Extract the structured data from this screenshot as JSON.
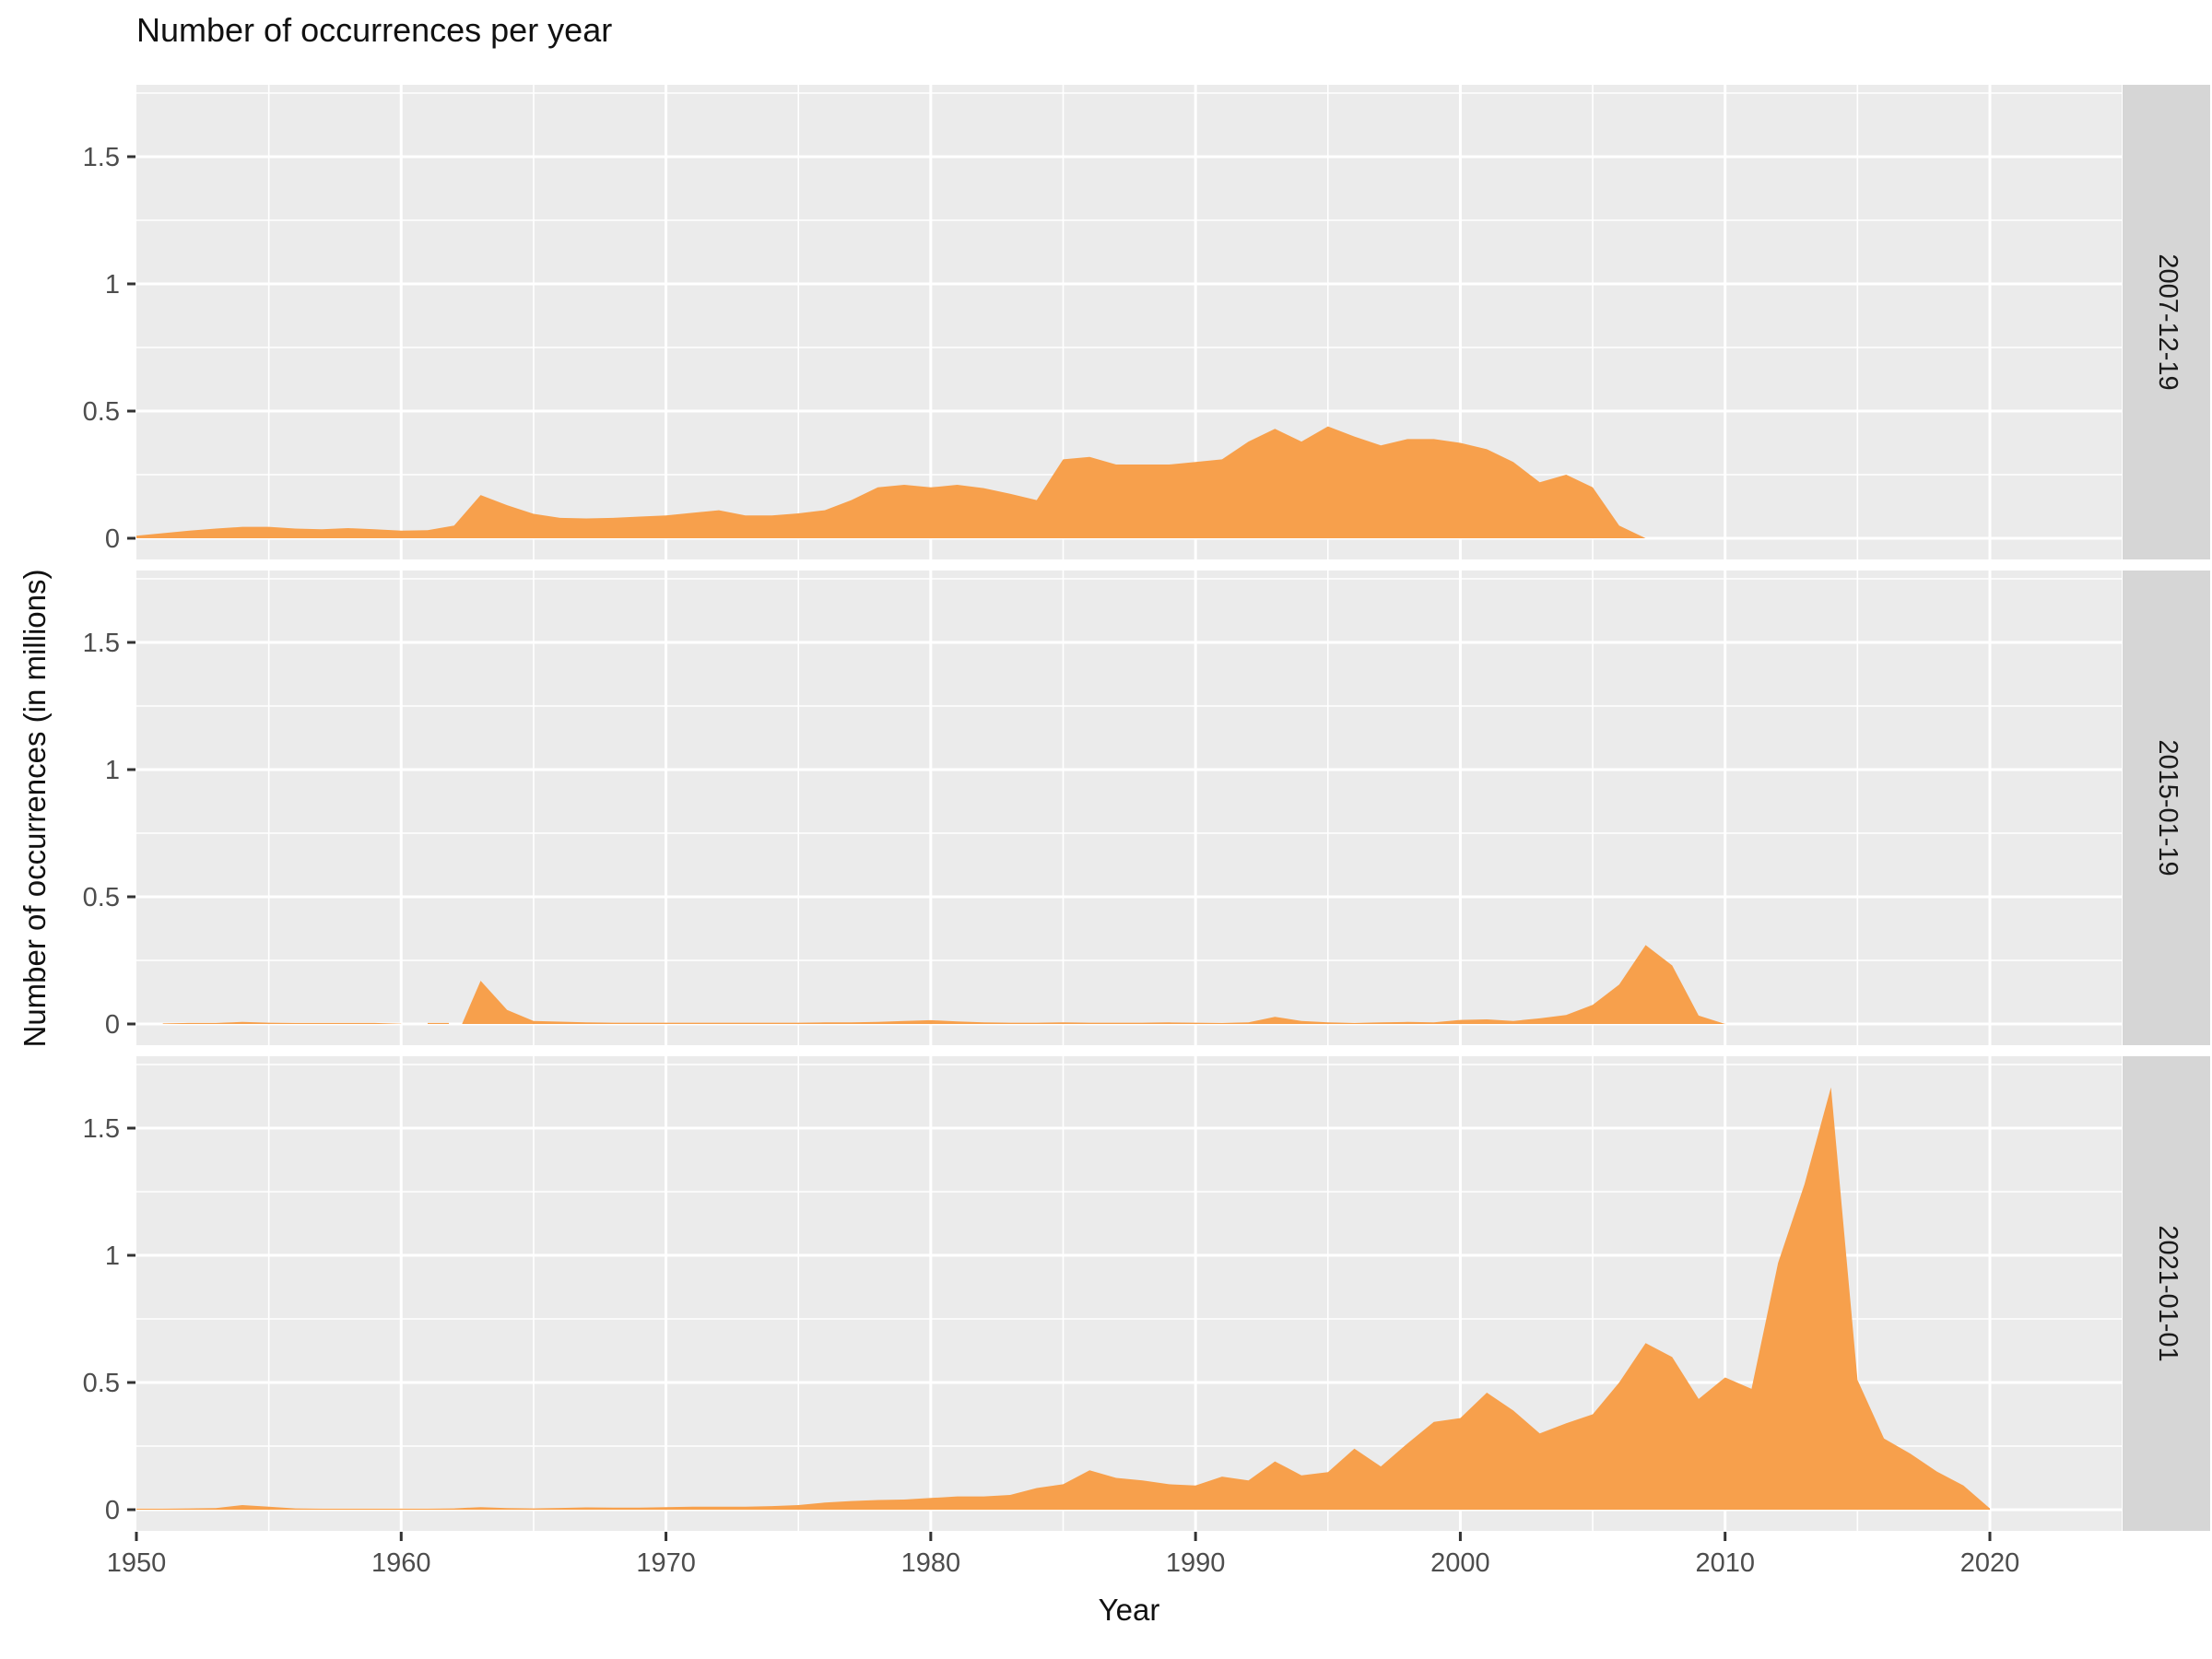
{
  "chart_data": {
    "type": "area",
    "title": "Number of occurrences per year",
    "xlabel": "Year",
    "ylabel": "Number of occurrences (in millions)",
    "x_ticks": [
      {
        "year": 1950,
        "label": "1950"
      },
      {
        "year": 1960,
        "label": "1960"
      },
      {
        "year": 1970,
        "label": "1970"
      },
      {
        "year": 1980,
        "label": "1980"
      },
      {
        "year": 1990,
        "label": "1990"
      },
      {
        "year": 2000,
        "label": "2000"
      },
      {
        "year": 2010,
        "label": "2010"
      },
      {
        "year": 2020,
        "label": "2020"
      }
    ],
    "x_minor_years": [
      1955,
      1965,
      1975,
      1985,
      1995,
      2005,
      2015
    ],
    "y_ticks": [
      {
        "value": 0,
        "label": "0"
      },
      {
        "value": 0.5,
        "label": "0.5"
      },
      {
        "value": 1,
        "label": "1"
      },
      {
        "value": 1.5,
        "label": "1.5"
      }
    ],
    "y_minor": [
      0.25,
      0.75,
      1.25,
      1.75
    ],
    "xlim": [
      1950,
      2025
    ],
    "ylim": [
      -0.085,
      1.78
    ],
    "grid": "on",
    "legend": "none",
    "colors": {
      "area": "#F7A04C",
      "panel_bg": "#EBEBEB",
      "strip_bg": "#D6D6D6",
      "grid": "#FFFFFF",
      "tick_text": "#4D4D4D",
      "tick_mark": "#333333",
      "strip_text": "#1A1A1A"
    },
    "facets": [
      {
        "label": "2007-12-19",
        "segments": [
          [
            [
              1950,
              0.01
            ],
            [
              1951,
              0.02
            ],
            [
              1952,
              0.03
            ],
            [
              1953,
              0.038
            ],
            [
              1954,
              0.045
            ],
            [
              1955,
              0.045
            ],
            [
              1956,
              0.038
            ],
            [
              1957,
              0.035
            ],
            [
              1958,
              0.04
            ],
            [
              1959,
              0.035
            ],
            [
              1960,
              0.03
            ],
            [
              1961,
              0.032
            ],
            [
              1962,
              0.05
            ],
            [
              1963,
              0.17
            ],
            [
              1964,
              0.13
            ],
            [
              1965,
              0.096
            ],
            [
              1966,
              0.08
            ],
            [
              1967,
              0.078
            ],
            [
              1968,
              0.08
            ],
            [
              1969,
              0.085
            ],
            [
              1970,
              0.09
            ],
            [
              1971,
              0.1
            ],
            [
              1972,
              0.11
            ],
            [
              1973,
              0.09
            ],
            [
              1974,
              0.09
            ],
            [
              1975,
              0.098
            ],
            [
              1976,
              0.11
            ],
            [
              1977,
              0.15
            ],
            [
              1978,
              0.2
            ],
            [
              1979,
              0.21
            ],
            [
              1980,
              0.2
            ],
            [
              1981,
              0.21
            ],
            [
              1982,
              0.197
            ],
            [
              1983,
              0.175
            ],
            [
              1984,
              0.15
            ],
            [
              1985,
              0.31
            ],
            [
              1986,
              0.32
            ],
            [
              1987,
              0.29
            ],
            [
              1988,
              0.29
            ],
            [
              1989,
              0.29
            ],
            [
              1990,
              0.3
            ],
            [
              1991,
              0.31
            ],
            [
              1992,
              0.38
            ],
            [
              1993,
              0.43
            ],
            [
              1994,
              0.38
            ],
            [
              1995,
              0.44
            ],
            [
              1996,
              0.4
            ],
            [
              1997,
              0.365
            ],
            [
              1998,
              0.39
            ],
            [
              1999,
              0.39
            ],
            [
              2000,
              0.375
            ],
            [
              2001,
              0.35
            ],
            [
              2002,
              0.3
            ],
            [
              2003,
              0.22
            ],
            [
              2004,
              0.25
            ],
            [
              2005,
              0.2
            ],
            [
              2006,
              0.05
            ],
            [
              2007,
              0.0
            ]
          ]
        ]
      },
      {
        "label": "2015-01-19",
        "segments": [
          [
            [
              1951,
              0.002
            ],
            [
              1952,
              0.004
            ],
            [
              1953,
              0.004
            ],
            [
              1954,
              0.008
            ],
            [
              1955,
              0.005
            ],
            [
              1956,
              0.004
            ],
            [
              1957,
              0.004
            ],
            [
              1958,
              0.004
            ],
            [
              1959,
              0.004
            ],
            [
              1960,
              0.001
            ]
          ],
          [
            [
              1961,
              0.004
            ],
            [
              1961.8,
              0.004
            ]
          ],
          [
            [
              1962.3,
              0.001
            ],
            [
              1963,
              0.17
            ],
            [
              1964,
              0.055
            ],
            [
              1965,
              0.012
            ],
            [
              1966,
              0.009
            ],
            [
              1967,
              0.006
            ],
            [
              1968,
              0.005
            ],
            [
              1969,
              0.005
            ],
            [
              1970,
              0.005
            ],
            [
              1971,
              0.005
            ],
            [
              1972,
              0.005
            ],
            [
              1973,
              0.005
            ],
            [
              1974,
              0.005
            ],
            [
              1975,
              0.005
            ],
            [
              1976,
              0.006
            ],
            [
              1977,
              0.006
            ],
            [
              1978,
              0.008
            ],
            [
              1979,
              0.012
            ],
            [
              1980,
              0.015
            ],
            [
              1981,
              0.01
            ],
            [
              1982,
              0.006
            ],
            [
              1983,
              0.005
            ],
            [
              1984,
              0.005
            ],
            [
              1985,
              0.006
            ],
            [
              1986,
              0.005
            ],
            [
              1987,
              0.005
            ],
            [
              1988,
              0.005
            ],
            [
              1989,
              0.006
            ],
            [
              1990,
              0.005
            ],
            [
              1991,
              0.004
            ],
            [
              1992,
              0.006
            ],
            [
              1993,
              0.028
            ],
            [
              1994,
              0.012
            ],
            [
              1995,
              0.006
            ],
            [
              1996,
              0.004
            ],
            [
              1997,
              0.006
            ],
            [
              1998,
              0.008
            ],
            [
              1999,
              0.006
            ],
            [
              2000,
              0.016
            ],
            [
              2001,
              0.018
            ],
            [
              2002,
              0.012
            ],
            [
              2003,
              0.022
            ],
            [
              2004,
              0.035
            ],
            [
              2005,
              0.075
            ],
            [
              2006,
              0.155
            ],
            [
              2007,
              0.31
            ],
            [
              2008,
              0.23
            ],
            [
              2009,
              0.033
            ],
            [
              2010,
              0.0
            ]
          ]
        ]
      },
      {
        "label": "2021-01-01",
        "segments": [
          [
            [
              1950,
              0.004
            ],
            [
              1951,
              0.004
            ],
            [
              1952,
              0.005
            ],
            [
              1953,
              0.006
            ],
            [
              1954,
              0.018
            ],
            [
              1955,
              0.012
            ],
            [
              1956,
              0.005
            ],
            [
              1957,
              0.004
            ],
            [
              1958,
              0.004
            ],
            [
              1959,
              0.004
            ],
            [
              1960,
              0.004
            ],
            [
              1961,
              0.004
            ],
            [
              1962,
              0.005
            ],
            [
              1963,
              0.01
            ],
            [
              1964,
              0.006
            ],
            [
              1965,
              0.005
            ],
            [
              1966,
              0.007
            ],
            [
              1967,
              0.009
            ],
            [
              1968,
              0.008
            ],
            [
              1969,
              0.008
            ],
            [
              1970,
              0.01
            ],
            [
              1971,
              0.012
            ],
            [
              1972,
              0.012
            ],
            [
              1973,
              0.012
            ],
            [
              1974,
              0.014
            ],
            [
              1975,
              0.018
            ],
            [
              1976,
              0.028
            ],
            [
              1977,
              0.034
            ],
            [
              1978,
              0.038
            ],
            [
              1979,
              0.04
            ],
            [
              1980,
              0.046
            ],
            [
              1981,
              0.052
            ],
            [
              1982,
              0.052
            ],
            [
              1983,
              0.058
            ],
            [
              1984,
              0.085
            ],
            [
              1985,
              0.1
            ],
            [
              1986,
              0.155
            ],
            [
              1987,
              0.125
            ],
            [
              1988,
              0.115
            ],
            [
              1989,
              0.1
            ],
            [
              1990,
              0.095
            ],
            [
              1991,
              0.13
            ],
            [
              1992,
              0.115
            ],
            [
              1993,
              0.19
            ],
            [
              1994,
              0.135
            ],
            [
              1995,
              0.148
            ],
            [
              1996,
              0.24
            ],
            [
              1997,
              0.17
            ],
            [
              1998,
              0.26
            ],
            [
              1999,
              0.345
            ],
            [
              2000,
              0.36
            ],
            [
              2001,
              0.46
            ],
            [
              2002,
              0.39
            ],
            [
              2003,
              0.3
            ],
            [
              2004,
              0.34
            ],
            [
              2005,
              0.375
            ],
            [
              2006,
              0.5
            ],
            [
              2007,
              0.655
            ],
            [
              2008,
              0.6
            ],
            [
              2009,
              0.435
            ],
            [
              2010,
              0.52
            ],
            [
              2011,
              0.475
            ],
            [
              2012,
              0.97
            ],
            [
              2013,
              1.28
            ],
            [
              2014,
              1.66
            ],
            [
              2015,
              0.51
            ],
            [
              2016,
              0.28
            ],
            [
              2017,
              0.22
            ],
            [
              2018,
              0.15
            ],
            [
              2019,
              0.095
            ],
            [
              2020,
              0.005
            ]
          ]
        ]
      }
    ]
  }
}
